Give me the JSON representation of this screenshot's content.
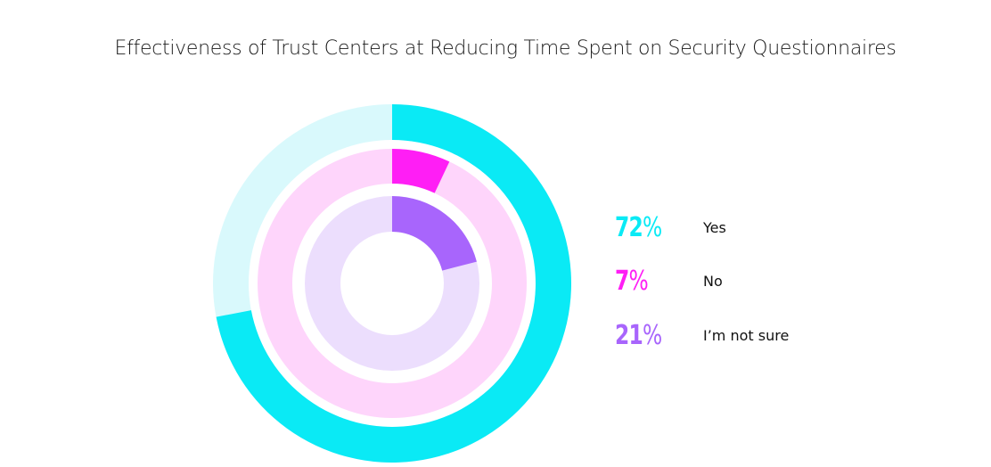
{
  "chart_data": {
    "type": "pie",
    "subtype": "concentric-radial-rings",
    "title": "Effectiveness of Trust Centers at Reducing Time Spent on Security Questionnaires",
    "legend_position": "right",
    "series": [
      {
        "name": "Yes",
        "value": 72,
        "display": "72%",
        "color": "#0aeaf5",
        "track_color": "#d9f9fc"
      },
      {
        "name": "No",
        "value": 7,
        "display": "7%",
        "color": "#ff1ef5",
        "track_color": "#fed5fb"
      },
      {
        "name": "I'm not sure",
        "value": 21,
        "display": "21%",
        "color": "#a865fc",
        "track_color": "#ecdefd"
      }
    ],
    "unit": "%",
    "max": 100
  },
  "legend": [
    {
      "pct": "72",
      "sym": "%",
      "label": "Yes"
    },
    {
      "pct": "7",
      "sym": "%",
      "label": "No"
    },
    {
      "pct": "21",
      "sym": "%",
      "label": "I’m not sure"
    }
  ]
}
